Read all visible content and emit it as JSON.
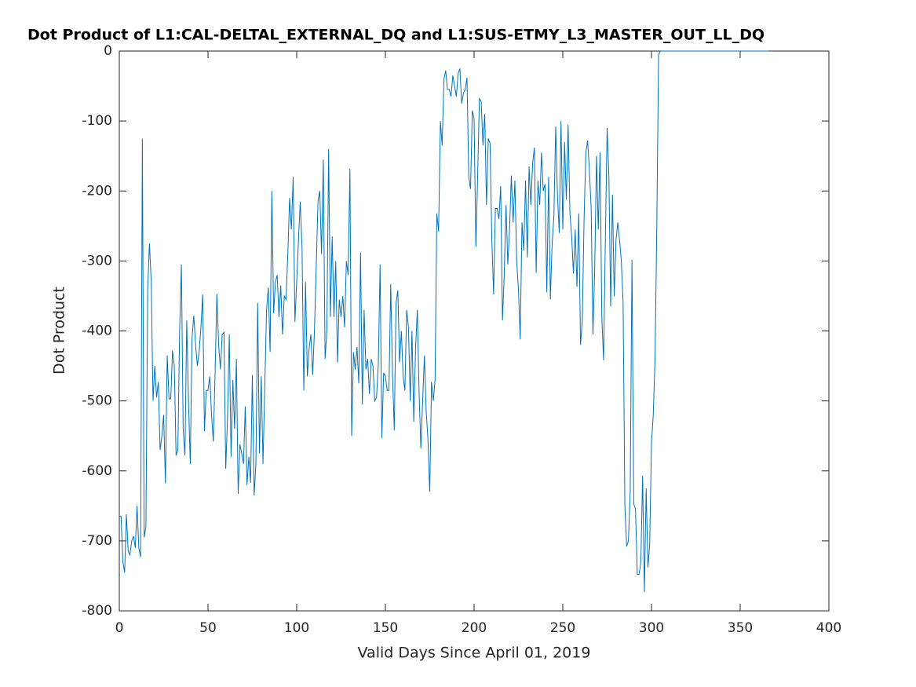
{
  "chart_data": {
    "type": "line",
    "title": "Dot Product of L1:CAL-DELTAL_EXTERNAL_DQ and L1:SUS-ETMY_L3_MASTER_OUT_LL_DQ",
    "xlabel": "Valid Days Since April 01, 2019",
    "ylabel": "Dot Product",
    "color": "#0072bd",
    "xlim": [
      0,
      400
    ],
    "xticks": [
      0,
      50,
      100,
      150,
      200,
      250,
      300,
      350,
      400
    ],
    "ylim": [
      -800,
      0
    ],
    "yticks": [
      -800,
      -700,
      -600,
      -500,
      -400,
      -300,
      -200,
      -100,
      0
    ],
    "grid": false,
    "x": [
      0,
      1,
      2,
      3,
      4,
      5,
      6,
      7,
      8,
      9,
      10,
      11,
      12,
      13,
      14,
      15,
      16,
      17,
      18,
      19,
      20,
      21,
      22,
      23,
      24,
      25,
      26,
      27,
      28,
      29,
      30,
      31,
      32,
      33,
      34,
      35,
      36,
      37,
      38,
      39,
      40,
      41,
      42,
      43,
      44,
      45,
      46,
      47,
      48,
      49,
      50,
      51,
      52,
      53,
      54,
      55,
      56,
      57,
      58,
      59,
      60,
      61,
      62,
      63,
      64,
      65,
      66,
      67,
      68,
      69,
      70,
      71,
      72,
      73,
      74,
      75,
      76,
      77,
      78,
      79,
      80,
      81,
      82,
      83,
      84,
      85,
      86,
      87,
      88,
      89,
      90,
      91,
      92,
      93,
      94,
      95,
      96,
      97,
      98,
      99,
      100,
      101,
      102,
      103,
      104,
      105,
      106,
      107,
      108,
      109,
      110,
      111,
      112,
      113,
      114,
      115,
      116,
      117,
      118,
      119,
      120,
      121,
      122,
      123,
      124,
      125,
      126,
      127,
      128,
      129,
      130,
      131,
      132,
      133,
      134,
      135,
      136,
      137,
      138,
      139,
      140,
      141,
      142,
      143,
      144,
      145,
      146,
      147,
      148,
      149,
      150,
      151,
      152,
      153,
      154,
      155,
      156,
      157,
      158,
      159,
      160,
      161,
      162,
      163,
      164,
      165,
      166,
      167,
      168,
      169,
      170,
      171,
      172,
      173,
      174,
      175,
      176,
      177,
      178,
      179,
      180,
      181,
      182,
      183,
      184,
      185,
      186,
      187,
      188,
      189,
      190,
      191,
      192,
      193,
      194,
      195,
      196,
      197,
      198,
      199,
      200,
      201,
      202,
      203,
      204,
      205,
      206,
      207,
      208,
      209,
      210,
      211,
      212,
      213,
      214,
      215,
      216,
      217,
      218,
      219,
      220,
      221,
      222,
      223,
      224,
      225,
      226,
      227,
      228,
      229,
      230,
      231,
      232,
      233,
      234,
      235,
      236,
      237,
      238,
      239,
      240,
      241,
      242,
      243,
      244,
      245,
      246,
      247,
      248,
      249,
      250,
      251,
      252,
      253,
      254,
      255,
      256,
      257,
      258,
      259,
      260,
      261,
      262,
      263,
      264,
      265,
      266,
      267,
      268,
      269,
      270,
      271,
      272,
      273,
      274,
      275,
      276,
      277,
      278,
      279,
      280,
      281,
      282,
      283,
      284,
      285,
      286,
      287,
      288,
      289,
      290,
      291,
      292,
      293,
      294,
      295,
      296,
      297,
      298,
      299,
      300,
      301,
      302,
      303,
      304,
      305,
      366
    ],
    "values": [
      -665,
      -665,
      -730,
      -745,
      -662,
      -715,
      -720,
      -700,
      -693,
      -710,
      -650,
      -710,
      -723,
      -125,
      -695,
      -680,
      -340,
      -275,
      -330,
      -500,
      -450,
      -495,
      -473,
      -570,
      -550,
      -520,
      -618,
      -435,
      -497,
      -497,
      -428,
      -450,
      -578,
      -570,
      -400,
      -305,
      -540,
      -578,
      -385,
      -500,
      -590,
      -410,
      -378,
      -420,
      -450,
      -430,
      -395,
      -348,
      -543,
      -485,
      -485,
      -465,
      -520,
      -558,
      -460,
      -347,
      -420,
      -455,
      -405,
      -402,
      -597,
      -525,
      -405,
      -580,
      -470,
      -540,
      -440,
      -633,
      -562,
      -575,
      -590,
      -508,
      -620,
      -580,
      -617,
      -463,
      -635,
      -590,
      -360,
      -575,
      -465,
      -590,
      -480,
      -370,
      -338,
      -430,
      -200,
      -375,
      -330,
      -320,
      -380,
      -335,
      -405,
      -350,
      -355,
      -290,
      -210,
      -255,
      -180,
      -387,
      -330,
      -270,
      -215,
      -280,
      -485,
      -330,
      -465,
      -425,
      -405,
      -463,
      -400,
      -310,
      -215,
      -200,
      -290,
      -155,
      -440,
      -400,
      -140,
      -380,
      -265,
      -380,
      -300,
      -445,
      -355,
      -380,
      -350,
      -395,
      -300,
      -320,
      -168,
      -550,
      -430,
      -455,
      -423,
      -475,
      -288,
      -505,
      -370,
      -455,
      -440,
      -490,
      -440,
      -450,
      -500,
      -495,
      -448,
      -305,
      -553,
      -460,
      -465,
      -485,
      -485,
      -333,
      -460,
      -542,
      -360,
      -342,
      -445,
      -400,
      -465,
      -485,
      -370,
      -395,
      -500,
      -400,
      -530,
      -425,
      -370,
      -490,
      -568,
      -500,
      -435,
      -515,
      -555,
      -630,
      -473,
      -500,
      -470,
      -232,
      -258,
      -100,
      -135,
      -40,
      -28,
      -55,
      -55,
      -65,
      -35,
      -50,
      -65,
      -32,
      -25,
      -75,
      -60,
      -55,
      -38,
      -180,
      -197,
      -85,
      -97,
      -280,
      -180,
      -68,
      -72,
      -135,
      -90,
      -220,
      -125,
      -132,
      -270,
      -348,
      -225,
      -225,
      -240,
      -193,
      -385,
      -320,
      -220,
      -305,
      -255,
      -178,
      -245,
      -185,
      -300,
      -340,
      -412,
      -245,
      -285,
      -185,
      -295,
      -165,
      -220,
      -160,
      -138,
      -317,
      -185,
      -220,
      -145,
      -200,
      -190,
      -345,
      -180,
      -355,
      -275,
      -235,
      -108,
      -205,
      -260,
      -100,
      -255,
      -130,
      -212,
      -105,
      -230,
      -265,
      -318,
      -255,
      -337,
      -232,
      -420,
      -385,
      -240,
      -145,
      -128,
      -170,
      -225,
      -405,
      -312,
      -150,
      -255,
      -145,
      -380,
      -442,
      -270,
      -110,
      -180,
      -365,
      -205,
      -350,
      -270,
      -245,
      -270,
      -300,
      -360,
      -650,
      -708,
      -700,
      -630,
      -298,
      -647,
      -655,
      -748,
      -748,
      -730,
      -607,
      -773,
      -625,
      -738,
      -705,
      -560,
      -520,
      -440,
      -250,
      -5,
      0,
      0
    ]
  }
}
